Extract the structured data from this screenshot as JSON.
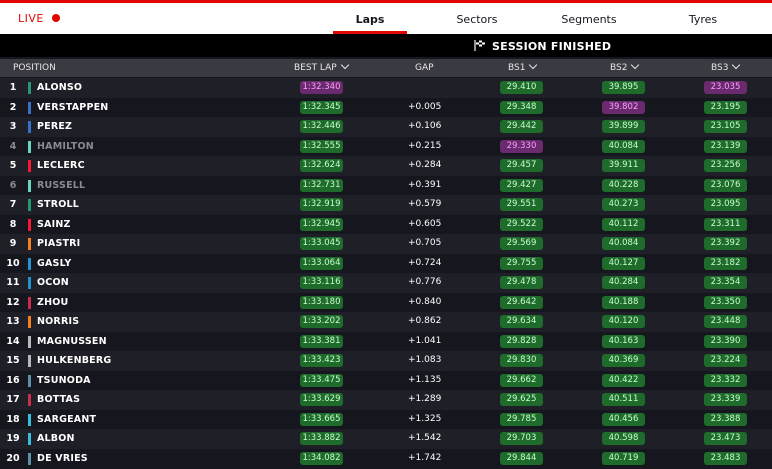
{
  "topbar": {
    "live_label": "LIVE",
    "tabs": [
      {
        "label": "Laps",
        "active": true
      },
      {
        "label": "Sectors",
        "active": false
      },
      {
        "label": "Segments",
        "active": false
      },
      {
        "label": "Tyres",
        "active": false
      }
    ]
  },
  "status": {
    "text": "SESSION FINISHED"
  },
  "table": {
    "headers": {
      "position": "POSITION",
      "best_lap": "BEST LAP",
      "gap": "GAP",
      "bs1": "BS1",
      "bs2": "BS2",
      "bs3": "BS3"
    },
    "rows": [
      {
        "pos": "1",
        "driver": "ALONSO",
        "team_color": "#229971",
        "retired": false,
        "best": "1:32.340",
        "best_purple": true,
        "gap": "",
        "bs1": "29.410",
        "bs1_purple": false,
        "bs2": "39.895",
        "bs2_purple": false,
        "bs3": "23.035",
        "bs3_purple": true
      },
      {
        "pos": "2",
        "driver": "VERSTAPPEN",
        "team_color": "#3671c6",
        "retired": false,
        "best": "1:32.345",
        "best_purple": false,
        "gap": "+0.005",
        "bs1": "29.348",
        "bs1_purple": false,
        "bs2": "39.802",
        "bs2_purple": true,
        "bs3": "23.195",
        "bs3_purple": false
      },
      {
        "pos": "3",
        "driver": "PEREZ",
        "team_color": "#3671c6",
        "retired": false,
        "best": "1:32.446",
        "best_purple": false,
        "gap": "+0.106",
        "bs1": "29.442",
        "bs1_purple": false,
        "bs2": "39.899",
        "bs2_purple": false,
        "bs3": "23.105",
        "bs3_purple": false
      },
      {
        "pos": "4",
        "driver": "HAMILTON",
        "team_color": "#6cd3bf",
        "retired": true,
        "best": "1:32.555",
        "best_purple": false,
        "gap": "+0.215",
        "bs1": "29.330",
        "bs1_purple": true,
        "bs2": "40.084",
        "bs2_purple": false,
        "bs3": "23.139",
        "bs3_purple": false
      },
      {
        "pos": "5",
        "driver": "LECLERC",
        "team_color": "#f91536",
        "retired": false,
        "best": "1:32.624",
        "best_purple": false,
        "gap": "+0.284",
        "bs1": "29.457",
        "bs1_purple": false,
        "bs2": "39.911",
        "bs2_purple": false,
        "bs3": "23.256",
        "bs3_purple": false
      },
      {
        "pos": "6",
        "driver": "RUSSELL",
        "team_color": "#6cd3bf",
        "retired": true,
        "best": "1:32.731",
        "best_purple": false,
        "gap": "+0.391",
        "bs1": "29.427",
        "bs1_purple": false,
        "bs2": "40.228",
        "bs2_purple": false,
        "bs3": "23.076",
        "bs3_purple": false
      },
      {
        "pos": "7",
        "driver": "STROLL",
        "team_color": "#229971",
        "retired": false,
        "best": "1:32.919",
        "best_purple": false,
        "gap": "+0.579",
        "bs1": "29.551",
        "bs1_purple": false,
        "bs2": "40.273",
        "bs2_purple": false,
        "bs3": "23.095",
        "bs3_purple": false
      },
      {
        "pos": "8",
        "driver": "SAINZ",
        "team_color": "#f91536",
        "retired": false,
        "best": "1:32.945",
        "best_purple": false,
        "gap": "+0.605",
        "bs1": "29.522",
        "bs1_purple": false,
        "bs2": "40.112",
        "bs2_purple": false,
        "bs3": "23.311",
        "bs3_purple": false
      },
      {
        "pos": "9",
        "driver": "PIASTRI",
        "team_color": "#f58020",
        "retired": false,
        "best": "1:33.045",
        "best_purple": false,
        "gap": "+0.705",
        "bs1": "29.569",
        "bs1_purple": false,
        "bs2": "40.084",
        "bs2_purple": false,
        "bs3": "23.392",
        "bs3_purple": false
      },
      {
        "pos": "10",
        "driver": "GASLY",
        "team_color": "#2293d1",
        "retired": false,
        "best": "1:33.064",
        "best_purple": false,
        "gap": "+0.724",
        "bs1": "29.755",
        "bs1_purple": false,
        "bs2": "40.127",
        "bs2_purple": false,
        "bs3": "23.182",
        "bs3_purple": false
      },
      {
        "pos": "11",
        "driver": "OCON",
        "team_color": "#2293d1",
        "retired": false,
        "best": "1:33.116",
        "best_purple": false,
        "gap": "+0.776",
        "bs1": "29.478",
        "bs1_purple": false,
        "bs2": "40.284",
        "bs2_purple": false,
        "bs3": "23.354",
        "bs3_purple": false
      },
      {
        "pos": "12",
        "driver": "ZHOU",
        "team_color": "#c92d4b",
        "retired": false,
        "best": "1:33.180",
        "best_purple": false,
        "gap": "+0.840",
        "bs1": "29.642",
        "bs1_purple": false,
        "bs2": "40.188",
        "bs2_purple": false,
        "bs3": "23.350",
        "bs3_purple": false
      },
      {
        "pos": "13",
        "driver": "NORRIS",
        "team_color": "#f58020",
        "retired": false,
        "best": "1:33.202",
        "best_purple": false,
        "gap": "+0.862",
        "bs1": "29.634",
        "bs1_purple": false,
        "bs2": "40.120",
        "bs2_purple": false,
        "bs3": "23.448",
        "bs3_purple": false
      },
      {
        "pos": "14",
        "driver": "MAGNUSSEN",
        "team_color": "#b6babd",
        "retired": false,
        "best": "1:33.381",
        "best_purple": false,
        "gap": "+1.041",
        "bs1": "29.828",
        "bs1_purple": false,
        "bs2": "40.163",
        "bs2_purple": false,
        "bs3": "23.390",
        "bs3_purple": false
      },
      {
        "pos": "15",
        "driver": "HULKENBERG",
        "team_color": "#b6babd",
        "retired": false,
        "best": "1:33.423",
        "best_purple": false,
        "gap": "+1.083",
        "bs1": "29.830",
        "bs1_purple": false,
        "bs2": "40.369",
        "bs2_purple": false,
        "bs3": "23.224",
        "bs3_purple": false
      },
      {
        "pos": "16",
        "driver": "TSUNODA",
        "team_color": "#5e8faa",
        "retired": false,
        "best": "1:33.475",
        "best_purple": false,
        "gap": "+1.135",
        "bs1": "29.662",
        "bs1_purple": false,
        "bs2": "40.422",
        "bs2_purple": false,
        "bs3": "23.332",
        "bs3_purple": false
      },
      {
        "pos": "17",
        "driver": "BOTTAS",
        "team_color": "#c92d4b",
        "retired": false,
        "best": "1:33.629",
        "best_purple": false,
        "gap": "+1.289",
        "bs1": "29.625",
        "bs1_purple": false,
        "bs2": "40.511",
        "bs2_purple": false,
        "bs3": "23.339",
        "bs3_purple": false
      },
      {
        "pos": "18",
        "driver": "SARGEANT",
        "team_color": "#37bedd",
        "retired": false,
        "best": "1:33.665",
        "best_purple": false,
        "gap": "+1.325",
        "bs1": "29.785",
        "bs1_purple": false,
        "bs2": "40.456",
        "bs2_purple": false,
        "bs3": "23.388",
        "bs3_purple": false
      },
      {
        "pos": "19",
        "driver": "ALBON",
        "team_color": "#37bedd",
        "retired": false,
        "best": "1:33.882",
        "best_purple": false,
        "gap": "+1.542",
        "bs1": "29.703",
        "bs1_purple": false,
        "bs2": "40.598",
        "bs2_purple": false,
        "bs3": "23.473",
        "bs3_purple": false
      },
      {
        "pos": "20",
        "driver": "DE VRIES",
        "team_color": "#5e8faa",
        "retired": false,
        "best": "1:34.082",
        "best_purple": false,
        "gap": "+1.742",
        "bs1": "29.844",
        "bs1_purple": false,
        "bs2": "40.719",
        "bs2_purple": false,
        "bs3": "23.483",
        "bs3_purple": false
      }
    ]
  },
  "colors": {
    "accent": "#e10600",
    "fastest_purple": "#ff9cff",
    "personal_green": "#c8ffcc"
  }
}
